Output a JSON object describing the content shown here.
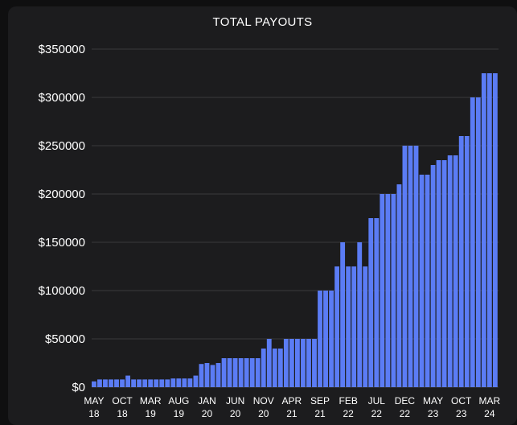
{
  "chart_data": {
    "type": "bar",
    "title": "TOTAL PAYOUTS",
    "xlabel": "",
    "ylabel": "",
    "ylim": [
      0,
      350000
    ],
    "yticks": [
      "$0",
      "$50000",
      "$100000",
      "$150000",
      "$200000",
      "$250000",
      "$300000",
      "$350000"
    ],
    "ytick_values": [
      0,
      50000,
      100000,
      150000,
      200000,
      250000,
      300000,
      350000
    ],
    "xticks": [
      {
        "top": "MAY",
        "bottom": "18",
        "index": 0
      },
      {
        "top": "OCT",
        "bottom": "18",
        "index": 5
      },
      {
        "top": "MAR",
        "bottom": "19",
        "index": 10
      },
      {
        "top": "AUG",
        "bottom": "19",
        "index": 15
      },
      {
        "top": "JAN",
        "bottom": "20",
        "index": 20
      },
      {
        "top": "JUN",
        "bottom": "20",
        "index": 25
      },
      {
        "top": "NOV",
        "bottom": "20",
        "index": 30
      },
      {
        "top": "APR",
        "bottom": "21",
        "index": 35
      },
      {
        "top": "SEP",
        "bottom": "21",
        "index": 40
      },
      {
        "top": "FEB",
        "bottom": "22",
        "index": 45
      },
      {
        "top": "JUL",
        "bottom": "22",
        "index": 50
      },
      {
        "top": "DEC",
        "bottom": "22",
        "index": 55
      },
      {
        "top": "MAY",
        "bottom": "23",
        "index": 60
      },
      {
        "top": "OCT",
        "bottom": "23",
        "index": 65
      },
      {
        "top": "MAR",
        "bottom": "24",
        "index": 70
      }
    ],
    "grid": true,
    "bar_color": "#5b7cf5",
    "values": [
      6000,
      8000,
      8000,
      8000,
      8000,
      8000,
      12000,
      8000,
      8000,
      8000,
      8000,
      8000,
      8000,
      8000,
      9000,
      9000,
      9000,
      9000,
      12000,
      24000,
      25000,
      23000,
      25000,
      30000,
      30000,
      30000,
      30000,
      30000,
      30000,
      30000,
      40000,
      50000,
      40000,
      40000,
      50000,
      50000,
      50000,
      50000,
      50000,
      50000,
      100000,
      100000,
      100000,
      125000,
      150000,
      125000,
      125000,
      150000,
      125000,
      175000,
      175000,
      200000,
      200000,
      200000,
      210000,
      250000,
      250000,
      250000,
      220000,
      220000,
      230000,
      235000,
      235000,
      240000,
      240000,
      260000,
      260000,
      300000,
      300000,
      325000,
      325000,
      325000
    ]
  },
  "colors": {
    "background": "#1c1c1e",
    "grid": "#3a3a3c",
    "text": "#ffffff",
    "bar": "#5b7cf5"
  }
}
